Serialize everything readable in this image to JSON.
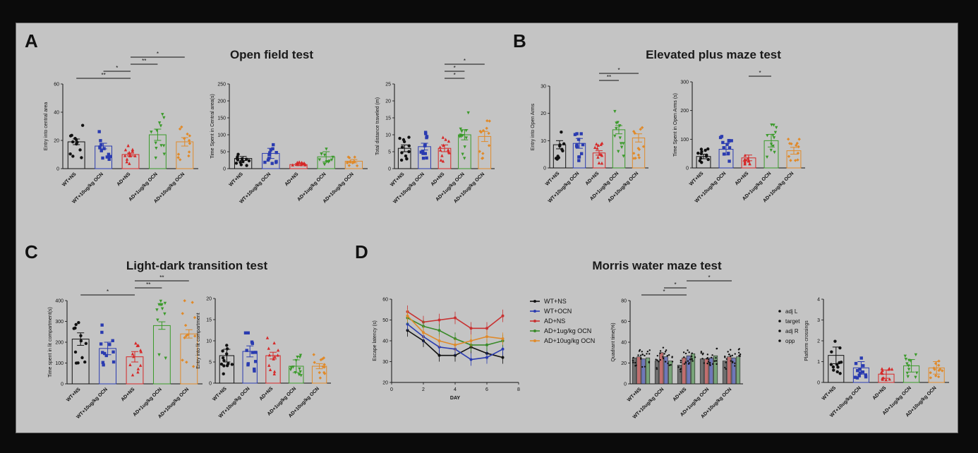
{
  "panels": [
    {
      "letter": "A",
      "title": "Open field test"
    },
    {
      "letter": "B",
      "title": "Elevated plus maze test"
    },
    {
      "letter": "C",
      "title": "Light-dark transition test"
    },
    {
      "letter": "D",
      "title": "Morris water maze test"
    }
  ],
  "colors": {
    "WT+NS": "#111111",
    "WT+10ug/kg OCN": "#2a3bb0",
    "AD+NS": "#d62828",
    "AD+1ug/kg OCN": "#3a9a2a",
    "AD+10ug/kg OCN": "#e08a2a"
  },
  "chart_data": [
    {
      "type": "bar",
      "id": "A1",
      "ylabel": "Entry into central area",
      "ylim": [
        0,
        60
      ],
      "yticks": [
        0,
        20,
        40,
        60
      ],
      "categories": [
        "WT+NS",
        "WT+10ug/kg OCN",
        "AD+NS",
        "AD+1ug/kg OCN",
        "AD+10ug/kg OCN"
      ],
      "values": [
        19,
        16,
        10,
        24,
        19
      ],
      "errors": [
        2,
        2,
        1,
        4,
        3
      ],
      "significance": [
        {
          "from": 0,
          "to": 2,
          "label": "**"
        },
        {
          "from": 1,
          "to": 2,
          "label": "*"
        },
        {
          "from": 2,
          "to": 3,
          "label": "**"
        },
        {
          "from": 2,
          "to": 4,
          "label": "*"
        }
      ]
    },
    {
      "type": "bar",
      "id": "A2",
      "ylabel": "Time Spent in Central area(s)",
      "ylim": [
        0,
        250
      ],
      "yticks": [
        0,
        50,
        100,
        150,
        200,
        250
      ],
      "categories": [
        "WT+NS",
        "WT+10ug/kg OCN",
        "AD+NS",
        "AD+1ug/kg OCN",
        "AD+10ug/kg OCN"
      ],
      "values": [
        30,
        45,
        12,
        35,
        22
      ],
      "errors": [
        6,
        15,
        3,
        15,
        5
      ],
      "significance": []
    },
    {
      "type": "bar",
      "id": "A3",
      "ylabel": "Total distance traveled (m)",
      "ylim": [
        0,
        25
      ],
      "yticks": [
        0,
        5,
        10,
        15,
        20,
        25
      ],
      "categories": [
        "WT+NS",
        "WT+10ug/kg OCN",
        "AD+NS",
        "AD+1ug/kg OCN",
        "AD+10ug/kg OCN"
      ],
      "values": [
        6,
        6.5,
        6,
        10,
        9.5
      ],
      "errors": [
        1,
        1,
        1,
        1.5,
        1.5
      ],
      "significance": [
        {
          "from": 2,
          "to": 3,
          "label": "*"
        },
        {
          "from": 2,
          "to": 3,
          "label": "*"
        },
        {
          "from": 2,
          "to": 4,
          "label": "*"
        }
      ]
    },
    {
      "type": "bar",
      "id": "B1",
      "ylabel": "Entry  into Open Arms",
      "ylim": [
        0,
        30
      ],
      "yticks": [
        0,
        10,
        20,
        30
      ],
      "categories": [
        "WT+NS",
        "WT+10ug/kg OCN",
        "AD+NS",
        "AD+1ug/kg OCN",
        "AD+10ug/kg OCN"
      ],
      "values": [
        8.5,
        9,
        5.5,
        14,
        11
      ],
      "errors": [
        1.5,
        1.8,
        0.8,
        1.5,
        1.5
      ],
      "significance": [
        {
          "from": 2,
          "to": 3,
          "label": "**"
        },
        {
          "from": 2,
          "to": 4,
          "label": "*"
        }
      ]
    },
    {
      "type": "bar",
      "id": "B2",
      "ylabel": "Time Spent in Open Arms (s)",
      "ylim": [
        0,
        300
      ],
      "yticks": [
        0,
        100,
        200,
        300
      ],
      "categories": [
        "WT+NS",
        "WT+10ug/kg OCN",
        "AD+NS",
        "AD+1ug/kg OCN",
        "AD+10ug/kg OCN"
      ],
      "values": [
        40,
        65,
        35,
        95,
        60
      ],
      "errors": [
        8,
        20,
        10,
        22,
        12
      ],
      "significance": [
        {
          "from": 2,
          "to": 3,
          "label": "*"
        }
      ]
    },
    {
      "type": "bar",
      "id": "C1",
      "ylabel": "Time spent in lit compartment(s)",
      "ylim": [
        0,
        400
      ],
      "yticks": [
        0,
        100,
        200,
        300,
        400
      ],
      "categories": [
        "WT+NS",
        "WT+10ug/kg OCN",
        "AD+NS",
        "AD+1ug/kg OCN",
        "AD+10ug/kg OCN"
      ],
      "values": [
        215,
        170,
        130,
        280,
        240
      ],
      "errors": [
        30,
        30,
        25,
        18,
        20
      ],
      "significance": [
        {
          "from": 0,
          "to": 2,
          "label": "*"
        },
        {
          "from": 2,
          "to": 3,
          "label": "**"
        },
        {
          "from": 2,
          "to": 4,
          "label": "**"
        }
      ]
    },
    {
      "type": "bar",
      "id": "C2",
      "ylabel": "Entry into lit compartment",
      "ylim": [
        0,
        20
      ],
      "yticks": [
        0,
        5,
        10,
        15,
        20
      ],
      "categories": [
        "WT+NS",
        "WT+10ug/kg OCN",
        "AD+NS",
        "AD+1ug/kg OCN",
        "AD+10ug/kg OCN"
      ],
      "values": [
        6.5,
        7.5,
        6.5,
        4,
        4
      ],
      "errors": [
        1.5,
        1.3,
        0.8,
        1.5,
        0.6
      ],
      "significance": []
    },
    {
      "type": "line",
      "id": "D1",
      "xlabel": "DAY",
      "ylabel": "Escape latency (s)",
      "xlim": [
        0,
        8
      ],
      "xticks": [
        0,
        2,
        4,
        6,
        8
      ],
      "ylim": [
        20,
        60
      ],
      "yticks": [
        20,
        30,
        40,
        50,
        60
      ],
      "x": [
        1,
        2,
        3,
        4,
        5,
        6,
        7
      ],
      "series": [
        {
          "name": "WT+NS",
          "values": [
            45,
            40,
            33,
            33,
            37,
            34,
            32
          ]
        },
        {
          "name": "WT+OCN",
          "values": [
            48,
            42,
            37,
            36,
            31,
            32,
            36
          ]
        },
        {
          "name": "AD+NS",
          "values": [
            54,
            49,
            50,
            51,
            46,
            46,
            52
          ]
        },
        {
          "name": "AD+1ug/kg OCN",
          "values": [
            51,
            47,
            45,
            41,
            38,
            38,
            40
          ]
        },
        {
          "name": "AD+10ug/kg OCN",
          "values": [
            52,
            44,
            40,
            38,
            40,
            42,
            41
          ]
        }
      ],
      "legend": [
        "WT+NS",
        "WT+OCN",
        "AD+NS",
        "AD+1ug/kg OCN",
        "AD+10ug/kg OCN"
      ]
    },
    {
      "type": "bar",
      "id": "D2",
      "ylabel": "Quadrant time(%)",
      "ylim": [
        0,
        80
      ],
      "yticks": [
        0,
        20,
        40,
        60,
        80
      ],
      "categories": [
        "WT+NS",
        "WT+10ug/kg OCN",
        "AD+NS",
        "AD+1ug/kg OCN",
        "AD+10ug/kg OCN"
      ],
      "series": [
        {
          "name": "adj L",
          "values": [
            25,
            22,
            18,
            24,
            22
          ]
        },
        {
          "name": "target",
          "values": [
            26,
            30,
            25,
            24,
            26
          ]
        },
        {
          "name": "adj R",
          "values": [
            24,
            26,
            27,
            25,
            25
          ]
        },
        {
          "name": "opp",
          "values": [
            25,
            22,
            29,
            27,
            26
          ]
        }
      ],
      "significance": [
        {
          "from": 0,
          "to": 2,
          "label": "*"
        },
        {
          "from": 1,
          "to": 2,
          "label": "*"
        },
        {
          "from": 2,
          "to": 4,
          "label": "*"
        }
      ]
    },
    {
      "type": "bar",
      "id": "D3",
      "ylabel": "Platform crossings",
      "ylim": [
        0,
        4
      ],
      "yticks": [
        0,
        1,
        2,
        3,
        4
      ],
      "categories": [
        "WT+NS",
        "WT+10ug/kg OCN",
        "AD+NS",
        "AD+1ug/kg OCN",
        "AD+10ug/kg OCN"
      ],
      "values": [
        1.3,
        0.7,
        0.4,
        0.8,
        0.7
      ],
      "errors": [
        0.4,
        0.3,
        0.2,
        0.3,
        0.3
      ],
      "significance": []
    }
  ]
}
